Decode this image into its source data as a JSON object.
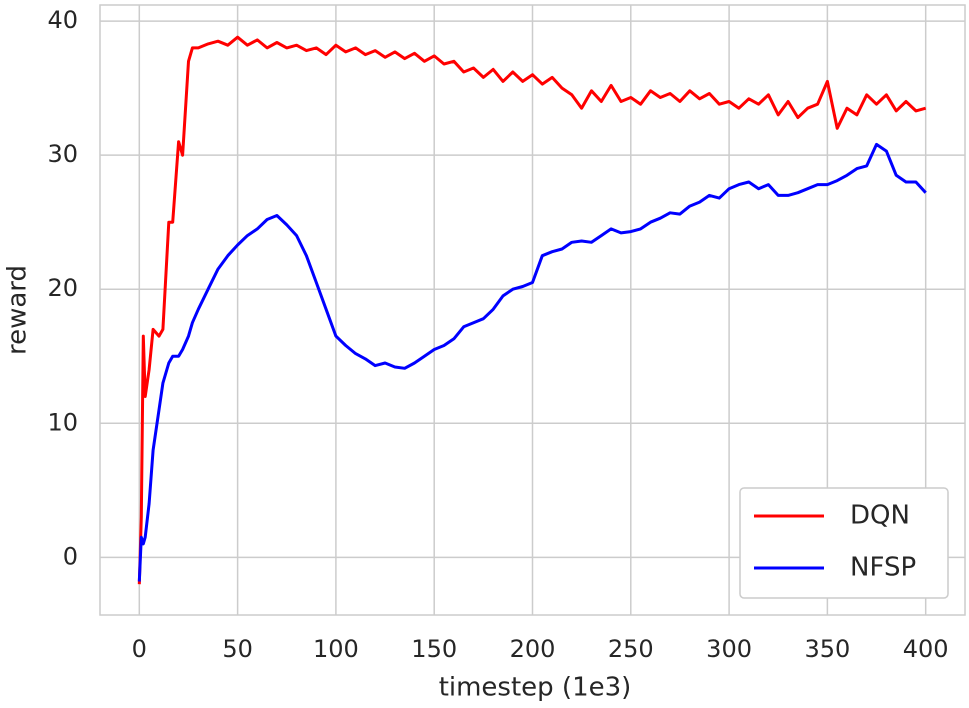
{
  "chart_data": {
    "type": "line",
    "x_label": "timestep (1e3)",
    "y_label": "reward",
    "x": [
      0,
      1,
      2,
      3,
      5,
      7,
      10,
      12,
      15,
      17,
      20,
      22,
      25,
      27,
      30,
      35,
      40,
      45,
      50,
      55,
      60,
      65,
      70,
      75,
      80,
      85,
      90,
      95,
      100,
      105,
      110,
      115,
      120,
      125,
      130,
      135,
      140,
      145,
      150,
      155,
      160,
      165,
      170,
      175,
      180,
      185,
      190,
      195,
      200,
      205,
      210,
      215,
      220,
      225,
      230,
      235,
      240,
      245,
      250,
      255,
      260,
      265,
      270,
      275,
      280,
      285,
      290,
      295,
      300,
      305,
      310,
      315,
      320,
      325,
      330,
      335,
      340,
      345,
      350,
      355,
      360,
      365,
      370,
      375,
      380,
      385,
      390,
      395,
      400
    ],
    "series": [
      {
        "name": "DQN",
        "color": "#ff0000",
        "values": [
          -2,
          3,
          16.5,
          12,
          14,
          17,
          16.5,
          17,
          25,
          25,
          31,
          30,
          37,
          38,
          38,
          38.3,
          38.5,
          38.2,
          38.8,
          38.2,
          38.6,
          38,
          38.4,
          38,
          38.2,
          37.8,
          38,
          37.5,
          38.2,
          37.7,
          38,
          37.5,
          37.8,
          37.3,
          37.7,
          37.2,
          37.6,
          37,
          37.4,
          36.8,
          37,
          36.2,
          36.5,
          35.8,
          36.4,
          35.5,
          36.2,
          35.5,
          36,
          35.3,
          35.8,
          35,
          34.5,
          33.5,
          34.8,
          34,
          35.2,
          34,
          34.3,
          33.8,
          34.8,
          34.3,
          34.6,
          34,
          34.8,
          34.2,
          34.6,
          33.8,
          34,
          33.5,
          34.2,
          33.8,
          34.5,
          33,
          34,
          32.8,
          33.5,
          33.8,
          35.5,
          32,
          33.5,
          33,
          34.5,
          33.8,
          34.5,
          33.3,
          34,
          33.3,
          33.5
        ]
      },
      {
        "name": "NFSP",
        "color": "#0000ff",
        "values": [
          -1.8,
          1.5,
          1,
          1.5,
          4,
          8,
          11,
          13,
          14.5,
          15,
          15,
          15.5,
          16.5,
          17.5,
          18.5,
          20,
          21.5,
          22.5,
          23.3,
          24,
          24.5,
          25.2,
          25.5,
          24.8,
          24,
          22.5,
          20.5,
          18.5,
          16.5,
          15.8,
          15.2,
          14.8,
          14.3,
          14.5,
          14.2,
          14.1,
          14.5,
          15,
          15.5,
          15.8,
          16.3,
          17.2,
          17.5,
          17.8,
          18.5,
          19.5,
          20,
          20.2,
          20.5,
          22.5,
          22.8,
          23,
          23.5,
          23.6,
          23.5,
          24,
          24.5,
          24.2,
          24.3,
          24.5,
          25,
          25.3,
          25.7,
          25.6,
          26.2,
          26.5,
          27,
          26.8,
          27.5,
          27.8,
          28,
          27.5,
          27.8,
          27,
          27,
          27.2,
          27.5,
          27.8,
          27.8,
          28.1,
          28.5,
          29,
          29.2,
          30.8,
          30.3,
          28.5,
          28,
          28,
          27.2
        ]
      }
    ],
    "xlim": [
      -20,
      420
    ],
    "ylim": [
      -4.3,
      41.2
    ],
    "xticks": [
      0,
      50,
      100,
      150,
      200,
      250,
      300,
      350,
      400
    ],
    "yticks": [
      0,
      10,
      20,
      30,
      40
    ],
    "grid": true,
    "legend": "lower right"
  }
}
